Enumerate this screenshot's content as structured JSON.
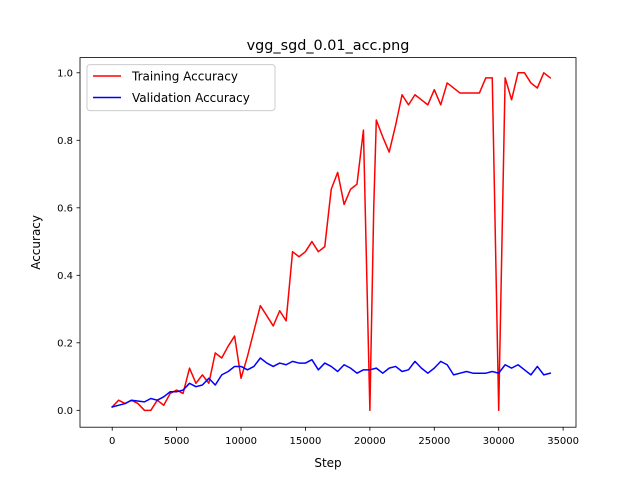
{
  "chart_data": {
    "type": "line",
    "title": "vgg_sgd_0.01_acc.png",
    "xlabel": "Step",
    "ylabel": "Accuracy",
    "xlim": [
      -2500,
      36000
    ],
    "ylim": [
      -0.05,
      1.045
    ],
    "xticks": [
      0,
      5000,
      10000,
      15000,
      20000,
      25000,
      30000,
      35000
    ],
    "xtick_labels": [
      "0",
      "5000",
      "10000",
      "15000",
      "20000",
      "25000",
      "30000",
      "35000"
    ],
    "yticks": [
      0.0,
      0.2,
      0.4,
      0.6,
      0.8,
      1.0
    ],
    "ytick_labels": [
      "0.0",
      "0.2",
      "0.4",
      "0.6",
      "0.8",
      "1.0"
    ],
    "grid": false,
    "legend": "top-left",
    "series": [
      {
        "name": "Training Accuracy",
        "color": "#ff0000",
        "points": [
          [
            0,
            0.01
          ],
          [
            500,
            0.03
          ],
          [
            1000,
            0.02
          ],
          [
            1500,
            0.03
          ],
          [
            2000,
            0.02
          ],
          [
            2500,
            0.0
          ],
          [
            3000,
            0.0
          ],
          [
            3500,
            0.03
          ],
          [
            4000,
            0.015
          ],
          [
            4500,
            0.05
          ],
          [
            5000,
            0.06
          ],
          [
            5500,
            0.05
          ],
          [
            6000,
            0.125
          ],
          [
            6500,
            0.08
          ],
          [
            7000,
            0.105
          ],
          [
            7500,
            0.08
          ],
          [
            8000,
            0.17
          ],
          [
            8500,
            0.155
          ],
          [
            9000,
            0.19
          ],
          [
            9500,
            0.22
          ],
          [
            10000,
            0.095
          ],
          [
            10500,
            0.16
          ],
          [
            11000,
            0.235
          ],
          [
            11500,
            0.31
          ],
          [
            12000,
            0.28
          ],
          [
            12500,
            0.25
          ],
          [
            13000,
            0.295
          ],
          [
            13500,
            0.265
          ],
          [
            14000,
            0.47
          ],
          [
            14500,
            0.455
          ],
          [
            15000,
            0.47
          ],
          [
            15500,
            0.5
          ],
          [
            16000,
            0.47
          ],
          [
            16500,
            0.485
          ],
          [
            17000,
            0.655
          ],
          [
            17500,
            0.705
          ],
          [
            18000,
            0.61
          ],
          [
            18500,
            0.655
          ],
          [
            19000,
            0.67
          ],
          [
            19500,
            0.83
          ],
          [
            20000,
            0.0
          ],
          [
            20300,
            0.6
          ],
          [
            20500,
            0.86
          ],
          [
            21000,
            0.81
          ],
          [
            21500,
            0.765
          ],
          [
            22000,
            0.845
          ],
          [
            22500,
            0.935
          ],
          [
            23000,
            0.905
          ],
          [
            23500,
            0.935
          ],
          [
            24000,
            0.92
          ],
          [
            24500,
            0.905
          ],
          [
            25000,
            0.95
          ],
          [
            25500,
            0.905
          ],
          [
            26000,
            0.97
          ],
          [
            27000,
            0.94
          ],
          [
            28000,
            0.94
          ],
          [
            28500,
            0.94
          ],
          [
            29000,
            0.985
          ],
          [
            29500,
            0.985
          ],
          [
            30000,
            0.0
          ],
          [
            30500,
            0.985
          ],
          [
            31000,
            0.92
          ],
          [
            31500,
            1.0
          ],
          [
            32000,
            1.0
          ],
          [
            32500,
            0.97
          ],
          [
            33000,
            0.955
          ],
          [
            33500,
            1.0
          ],
          [
            34000,
            0.985
          ]
        ]
      },
      {
        "name": "Validation Accuracy",
        "color": "#0000ff",
        "points": [
          [
            0,
            0.01
          ],
          [
            1000,
            0.02
          ],
          [
            1500,
            0.03
          ],
          [
            2500,
            0.025
          ],
          [
            3000,
            0.035
          ],
          [
            3500,
            0.03
          ],
          [
            4000,
            0.04
          ],
          [
            4500,
            0.055
          ],
          [
            5000,
            0.055
          ],
          [
            5500,
            0.06
          ],
          [
            6000,
            0.08
          ],
          [
            6500,
            0.07
          ],
          [
            7000,
            0.075
          ],
          [
            7500,
            0.095
          ],
          [
            8000,
            0.075
          ],
          [
            8500,
            0.105
          ],
          [
            9000,
            0.115
          ],
          [
            9500,
            0.13
          ],
          [
            10000,
            0.13
          ],
          [
            10500,
            0.12
          ],
          [
            11000,
            0.13
          ],
          [
            11500,
            0.155
          ],
          [
            12000,
            0.14
          ],
          [
            12500,
            0.13
          ],
          [
            13000,
            0.14
          ],
          [
            13500,
            0.135
          ],
          [
            14000,
            0.145
          ],
          [
            14500,
            0.14
          ],
          [
            15000,
            0.14
          ],
          [
            15500,
            0.15
          ],
          [
            16000,
            0.12
          ],
          [
            16500,
            0.14
          ],
          [
            17000,
            0.13
          ],
          [
            17500,
            0.115
          ],
          [
            18000,
            0.135
          ],
          [
            18500,
            0.125
          ],
          [
            19000,
            0.11
          ],
          [
            19500,
            0.12
          ],
          [
            20000,
            0.12
          ],
          [
            20500,
            0.125
          ],
          [
            21000,
            0.11
          ],
          [
            21500,
            0.125
          ],
          [
            22000,
            0.13
          ],
          [
            22500,
            0.115
          ],
          [
            23000,
            0.12
          ],
          [
            23500,
            0.145
          ],
          [
            24000,
            0.125
          ],
          [
            24500,
            0.11
          ],
          [
            25000,
            0.125
          ],
          [
            25500,
            0.145
          ],
          [
            26000,
            0.135
          ],
          [
            26500,
            0.105
          ],
          [
            27000,
            0.11
          ],
          [
            27500,
            0.115
          ],
          [
            28000,
            0.11
          ],
          [
            28500,
            0.11
          ],
          [
            29000,
            0.11
          ],
          [
            29500,
            0.115
          ],
          [
            30000,
            0.11
          ],
          [
            30500,
            0.135
          ],
          [
            31000,
            0.125
          ],
          [
            31500,
            0.135
          ],
          [
            32000,
            0.12
          ],
          [
            32500,
            0.105
          ],
          [
            33000,
            0.13
          ],
          [
            33500,
            0.105
          ],
          [
            34000,
            0.11
          ]
        ]
      }
    ]
  }
}
